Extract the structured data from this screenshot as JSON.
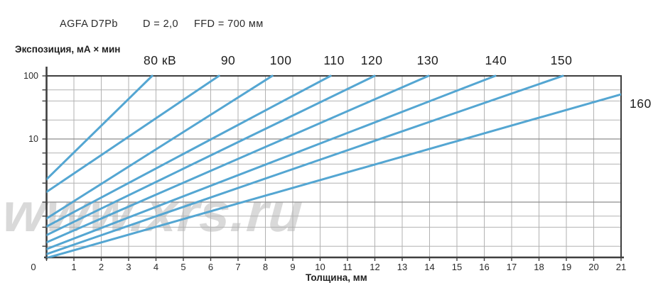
{
  "header": {
    "film": "AGFA D7Pb",
    "density": "D = 2,0",
    "ffd": "FFD = 700 мм"
  },
  "watermark": "www.xrs.ru",
  "chart_data": {
    "type": "line",
    "title": "Exposure nomogram AGFA D7Pb, D=2.0, FFD=700 мм",
    "xlabel": "Толщина, мм",
    "ylabel": "Экспозиция, мА × мин",
    "x_range": [
      0,
      21
    ],
    "x_tick_step": 1,
    "x_tick_labels": [
      "0",
      "1",
      "2",
      "3",
      "4",
      "5",
      "6",
      "7",
      "8",
      "9",
      "10",
      "11",
      "12",
      "13",
      "14",
      "15",
      "16",
      "17",
      "18",
      "19",
      "20",
      "21"
    ],
    "y_scale": "log",
    "y_range": [
      0.13,
      100
    ],
    "y_tick_labels": [
      {
        "text": "100",
        "value": 100
      },
      {
        "text": "10",
        "value": 10
      }
    ],
    "y_gridlines": [
      60,
      40,
      20,
      10,
      6,
      4,
      2,
      1,
      0.6,
      0.4,
      0.2
    ],
    "grid": true,
    "legend_position": "labels-on-lines",
    "line_color": "#54a6d2",
    "series": [
      {
        "name": "80 кВ",
        "kv": 80,
        "label": "80 кВ",
        "label_side": "top",
        "points": [
          [
            0,
            2.3
          ],
          [
            3.86,
            100
          ]
        ]
      },
      {
        "name": "90 кВ",
        "kv": 90,
        "label": "90",
        "label_side": "top",
        "points": [
          [
            0,
            1.45
          ],
          [
            6.3,
            100
          ]
        ]
      },
      {
        "name": "100 кВ",
        "kv": 100,
        "label": "100",
        "label_side": "top",
        "points": [
          [
            0,
            0.55
          ],
          [
            8.25,
            100
          ]
        ]
      },
      {
        "name": "110 кВ",
        "kv": 110,
        "label": "110",
        "label_side": "top",
        "points": [
          [
            0,
            0.41
          ],
          [
            10.38,
            100
          ]
        ]
      },
      {
        "name": "120 кВ",
        "kv": 120,
        "label": "120",
        "label_side": "top",
        "points": [
          [
            0,
            0.3
          ],
          [
            11.99,
            100
          ]
        ]
      },
      {
        "name": "130 кВ",
        "kv": 130,
        "label": "130",
        "label_side": "top",
        "points": [
          [
            0,
            0.23
          ],
          [
            13.96,
            100
          ]
        ]
      },
      {
        "name": "140 кВ",
        "kv": 140,
        "label": "140",
        "label_side": "top",
        "points": [
          [
            0,
            0.18
          ],
          [
            16.4,
            100
          ]
        ]
      },
      {
        "name": "150 кВ",
        "kv": 150,
        "label": "150",
        "label_side": "top",
        "points": [
          [
            0,
            0.15
          ],
          [
            18.87,
            100
          ]
        ]
      },
      {
        "name": "160 кВ",
        "kv": 160,
        "label": "160",
        "label_side": "right",
        "points": [
          [
            0,
            0.13
          ],
          [
            21,
            51
          ]
        ]
      }
    ]
  }
}
